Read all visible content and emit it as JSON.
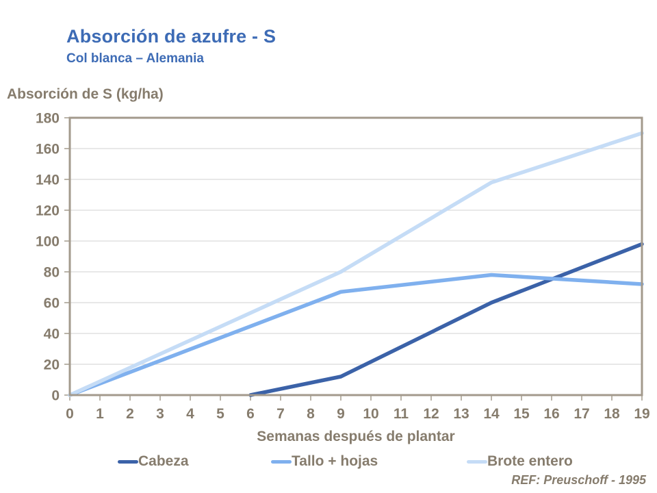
{
  "slide": {
    "title": "Absorción de azufre - S",
    "subtitle": "Col blanca – Alemania",
    "reference": "REF: Preuschoff - 1995"
  },
  "colors": {
    "title_blue": "#3d6bb5",
    "axis_text": "#867c6d",
    "axis_line": "#a39a8c",
    "gridline": "#d9d9d9"
  },
  "chart_data": {
    "type": "line",
    "title": "Absorción de azufre - S",
    "subtitle": "Col blanca – Alemania",
    "xlabel": "Semanas después de plantar",
    "ylabel": "Absorción de S (kg/ha)",
    "xlim": [
      0,
      19
    ],
    "ylim": [
      0,
      180
    ],
    "x_ticks": [
      0,
      1,
      2,
      3,
      4,
      5,
      6,
      7,
      8,
      9,
      10,
      11,
      12,
      13,
      14,
      15,
      16,
      17,
      18,
      19
    ],
    "y_ticks": [
      0,
      20,
      40,
      60,
      80,
      100,
      120,
      140,
      160,
      180
    ],
    "grid": "horizontal",
    "legend_position": "bottom",
    "series": [
      {
        "name": "Cabeza",
        "color": "#3b62a8",
        "x": [
          6,
          9,
          14,
          19
        ],
        "values": [
          0,
          12,
          60,
          98
        ]
      },
      {
        "name": "Tallo + hojas",
        "color": "#7fb0ee",
        "x": [
          0,
          9,
          14,
          19
        ],
        "values": [
          0,
          67,
          78,
          72
        ]
      },
      {
        "name": "Brote entero",
        "color": "#c5dcf6",
        "x": [
          0,
          9,
          14,
          19
        ],
        "values": [
          0,
          80,
          138,
          170
        ]
      }
    ]
  }
}
